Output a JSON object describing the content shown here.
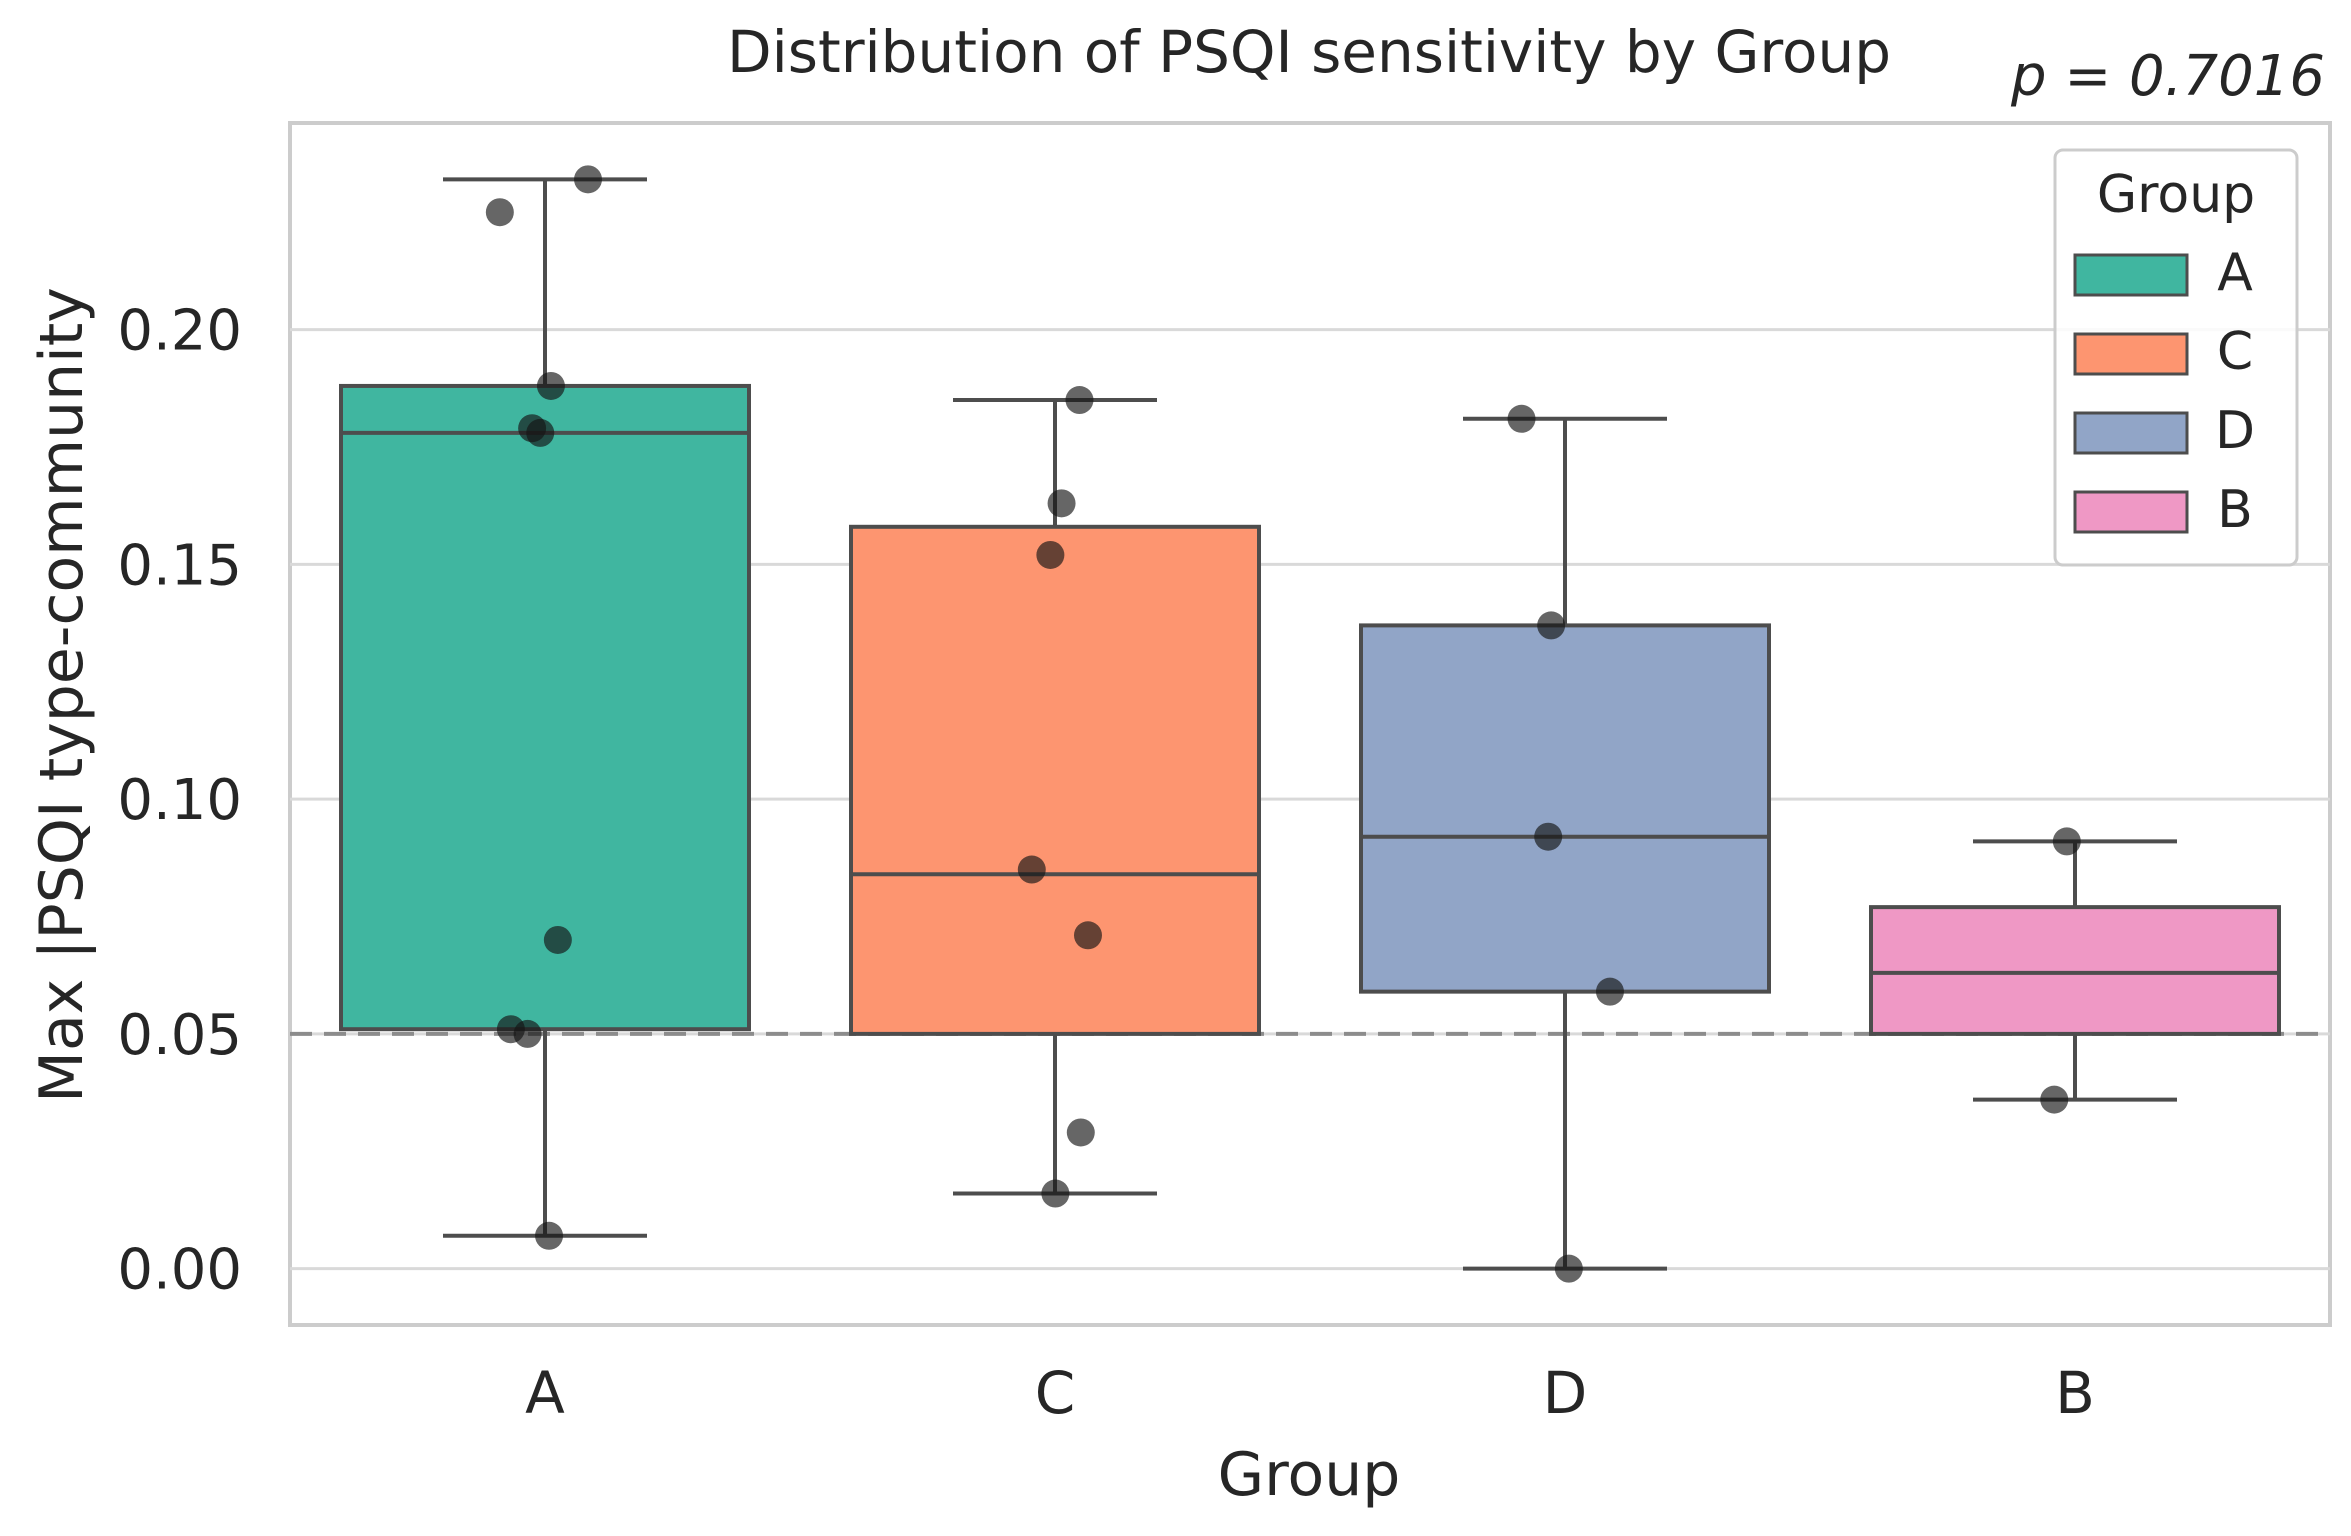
{
  "chart_data": {
    "type": "box",
    "title": "Distribution of PSQI sensitivity by Group",
    "annotation": "p = 0.7016",
    "xlabel": "Group",
    "ylabel": "Max |PSQI type-community",
    "categories": [
      "A",
      "C",
      "D",
      "B"
    ],
    "y_ticks": [
      "0.00",
      "0.05",
      "0.10",
      "0.15",
      "0.20"
    ],
    "y_tick_values": [
      0.0,
      0.05,
      0.1,
      0.15,
      0.2
    ],
    "ylim": [
      -0.012,
      0.244
    ],
    "reference_line": 0.05,
    "grid": true,
    "legend": {
      "title": "Group",
      "placement": "top-right",
      "entries": [
        "A",
        "C",
        "D",
        "B"
      ]
    },
    "series": [
      {
        "name": "A",
        "color": "#40b6a0",
        "q1": 0.051,
        "median": 0.178,
        "q3": 0.188,
        "whisker_low": 0.007,
        "whisker_high": 0.232,
        "points": [
          0.232,
          0.225,
          0.188,
          0.179,
          0.178,
          0.07,
          0.051,
          0.05,
          0.007
        ]
      },
      {
        "name": "C",
        "color": "#fd9570",
        "q1": 0.05,
        "median": 0.084,
        "q3": 0.158,
        "whisker_low": 0.016,
        "whisker_high": 0.185,
        "points": [
          0.185,
          0.163,
          0.152,
          0.085,
          0.071,
          0.029,
          0.016
        ]
      },
      {
        "name": "D",
        "color": "#91a5c7",
        "q1": 0.059,
        "median": 0.092,
        "q3": 0.137,
        "whisker_low": 0.0,
        "whisker_high": 0.181,
        "points": [
          0.181,
          0.137,
          0.092,
          0.059,
          0.0
        ]
      },
      {
        "name": "B",
        "color": "#ef98c5",
        "q1": 0.05,
        "median": 0.063,
        "q3": 0.077,
        "whisker_low": 0.036,
        "whisker_high": 0.091,
        "points": [
          0.091,
          0.036
        ]
      }
    ]
  }
}
